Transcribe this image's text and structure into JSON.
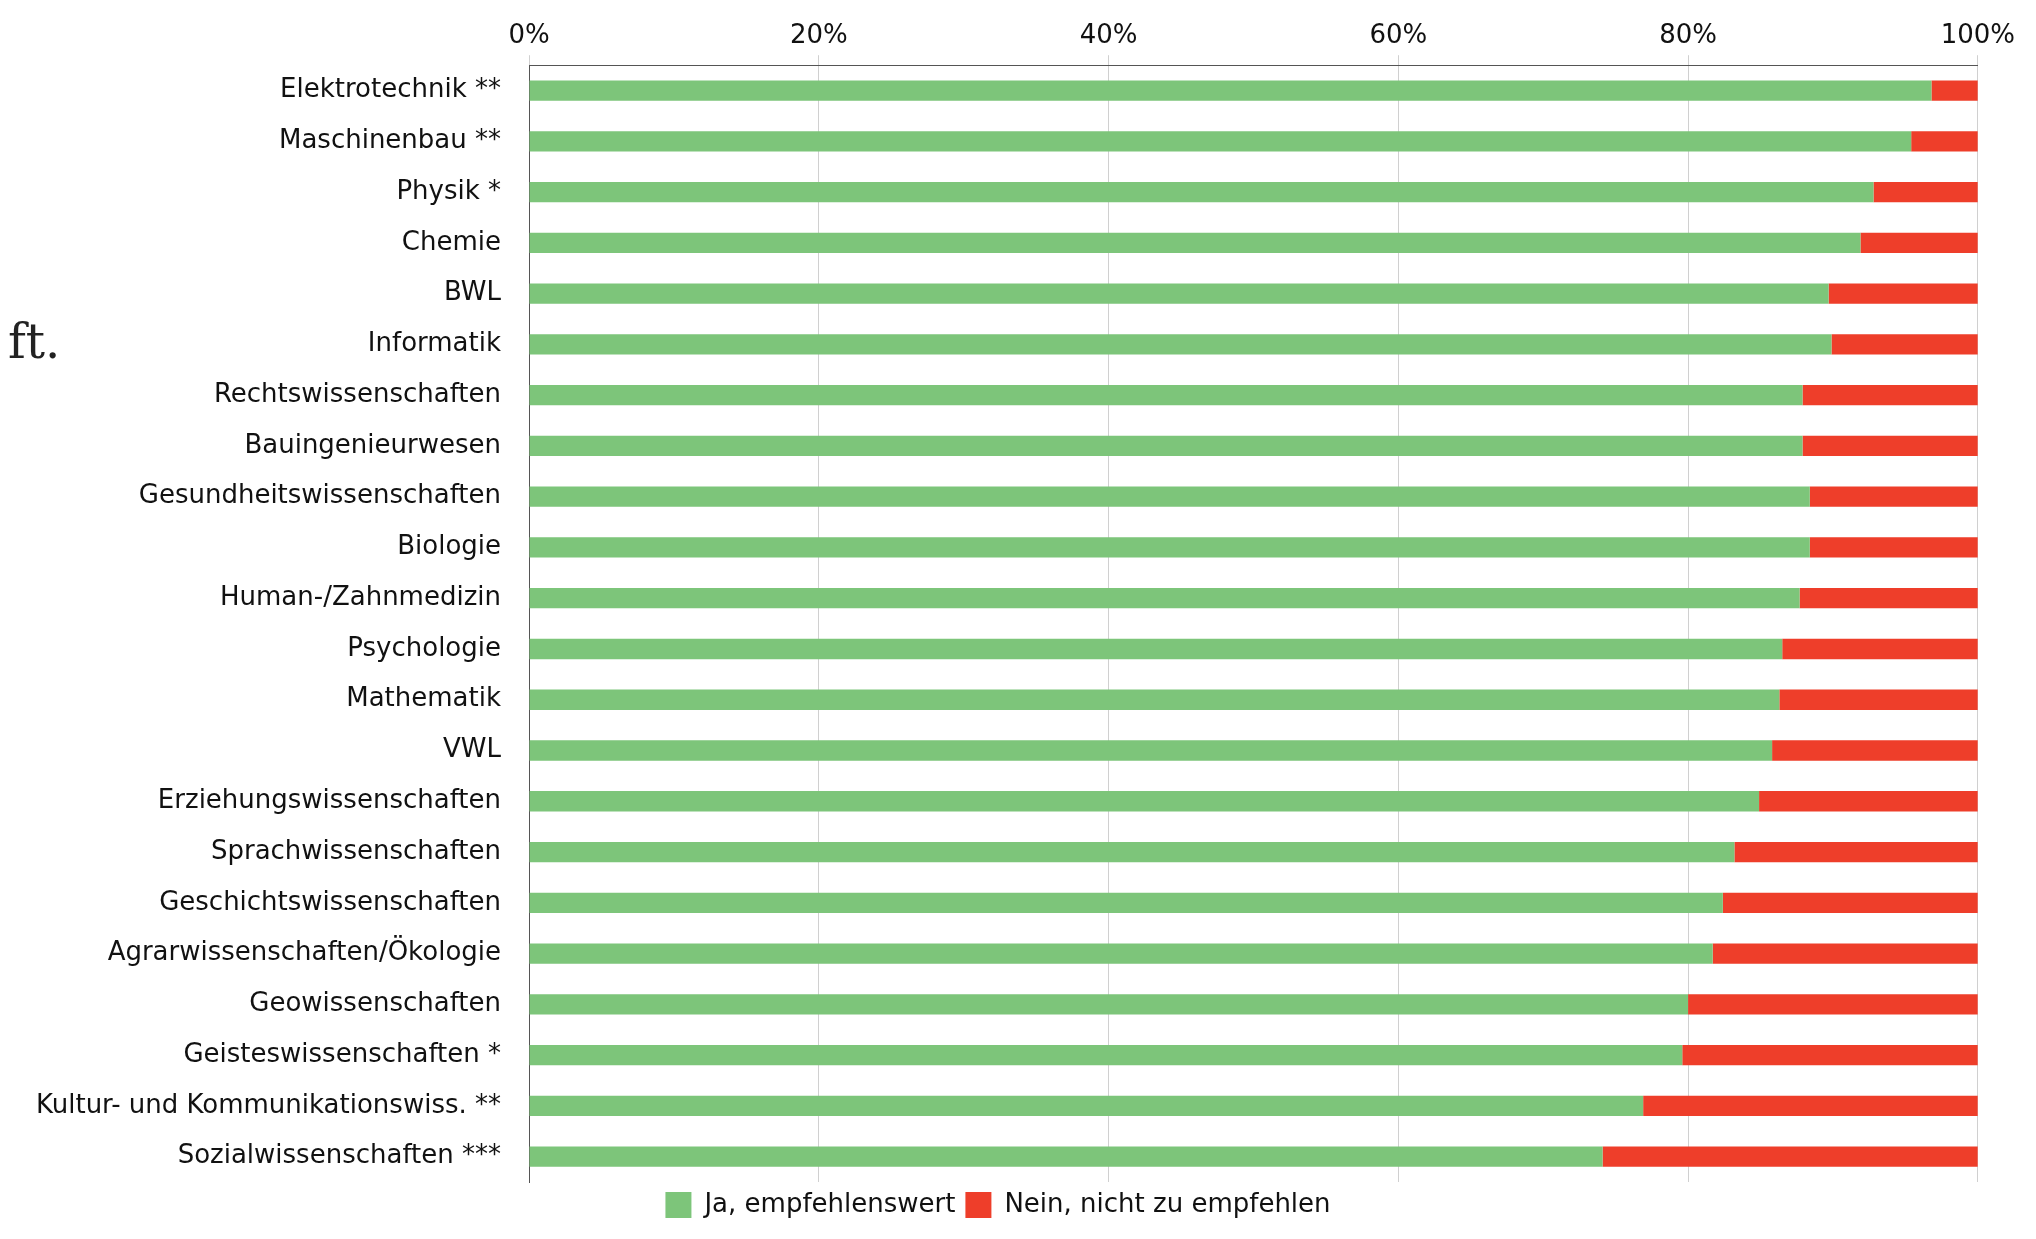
{
  "chart_data": {
    "type": "bar",
    "orientation": "horizontal",
    "stacked": true,
    "categories": [
      "Elektrotechnik **",
      "Maschinenbau **",
      "Physik *",
      "Chemie",
      "BWL",
      "Informatik",
      "Rechtswissenschaften",
      "Bauingenieurwesen",
      "Gesundheitswissenschaften",
      "Biologie",
      "Human-/Zahnmedizin",
      "Psychologie",
      "Mathematik",
      "VWL",
      "Erziehungswissenschaften",
      "Sprachwissenschaften",
      "Geschichtswissenschaften",
      "Agrarwissenschaften/Ökologie",
      "Geowissenschaften",
      "Geisteswissenschaften *",
      "Kultur- und Kommunikationswiss. **",
      "Sozialwissenschaften ***"
    ],
    "series": [
      {
        "name": "Ja, empfehlenswert",
        "color": "#7dc57a",
        "values": [
          96.8,
          95.4,
          92.8,
          91.9,
          89.7,
          89.9,
          87.9,
          87.9,
          88.4,
          88.4,
          87.7,
          86.5,
          86.3,
          85.8,
          84.9,
          83.2,
          82.4,
          81.7,
          80.0,
          79.6,
          76.9,
          74.1
        ]
      },
      {
        "name": "Nein, nicht zu empfehlen",
        "color": "#ee3e2a",
        "values": [
          3.2,
          4.6,
          7.2,
          8.1,
          10.3,
          10.1,
          12.1,
          12.1,
          11.6,
          11.6,
          12.3,
          13.5,
          13.7,
          14.2,
          15.1,
          16.8,
          17.6,
          18.3,
          20.0,
          20.4,
          23.1,
          25.9
        ]
      }
    ],
    "xlim": [
      0,
      100
    ],
    "xticks": [
      {
        "value": 0,
        "label": "0%"
      },
      {
        "value": 20,
        "label": "20%"
      },
      {
        "value": 40,
        "label": "40%"
      },
      {
        "value": 60,
        "label": "60%"
      },
      {
        "value": 80,
        "label": "80%"
      },
      {
        "value": 100,
        "label": "100%"
      }
    ],
    "grid": "x",
    "legend": "bottom",
    "annotations": [
      "ft."
    ]
  }
}
